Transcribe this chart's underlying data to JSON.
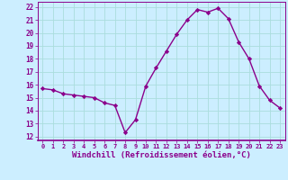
{
  "x": [
    0,
    1,
    2,
    3,
    4,
    5,
    6,
    7,
    8,
    9,
    10,
    11,
    12,
    13,
    14,
    15,
    16,
    17,
    18,
    19,
    20,
    21,
    22,
    23
  ],
  "y": [
    15.7,
    15.6,
    15.3,
    15.2,
    15.1,
    15.0,
    14.6,
    14.4,
    12.3,
    13.3,
    15.9,
    17.3,
    18.6,
    19.9,
    21.0,
    21.8,
    21.6,
    21.9,
    21.1,
    19.3,
    18.0,
    15.9,
    14.8,
    14.2
  ],
  "line_color": "#8B008B",
  "marker": "D",
  "marker_size": 2.2,
  "line_width": 1.0,
  "xlabel": "Windchill (Refroidissement éolien,°C)",
  "xlabel_fontsize": 6.5,
  "ylabel_ticks": [
    12,
    13,
    14,
    15,
    16,
    17,
    18,
    19,
    20,
    21,
    22
  ],
  "xtick_labels": [
    "0",
    "1",
    "2",
    "3",
    "4",
    "5",
    "6",
    "7",
    "8",
    "9",
    "10",
    "11",
    "12",
    "13",
    "14",
    "15",
    "16",
    "17",
    "18",
    "19",
    "20",
    "21",
    "22",
    "23"
  ],
  "ylim": [
    11.7,
    22.4
  ],
  "xlim": [
    -0.5,
    23.5
  ],
  "background_color": "#cceeff",
  "grid_color": "#aadddd",
  "tick_color": "#8B008B",
  "label_color": "#8B008B",
  "spine_color": "#8B008B"
}
